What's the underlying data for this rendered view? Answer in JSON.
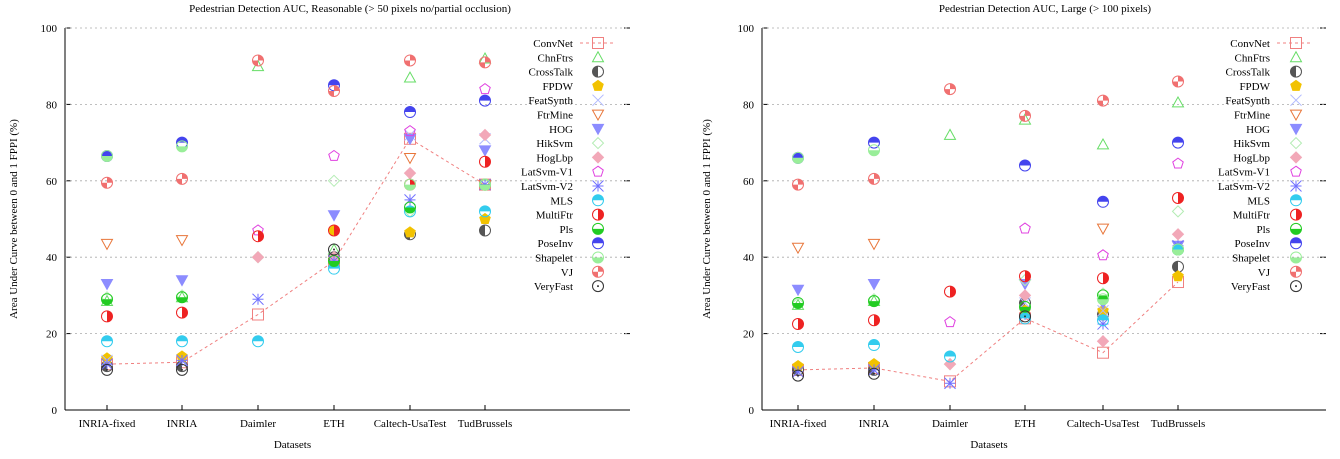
{
  "colors": {
    "ConvNet": "#f08080",
    "ChnFtrs": "#66dd66",
    "CrossTalk": "#555555",
    "FPDW": "#f2c200",
    "FeatSynth": "#b0b8ff",
    "FtrMine": "#e8763a",
    "HOG": "#8c8cff",
    "HikSvm": "#b4ecb4",
    "HogLbp": "#f2a8b8",
    "LatSvm-V1": "#e040e0",
    "LatSvm-V2": "#7070ff",
    "MLS": "#33ccee",
    "MultiFtr": "#ee2222",
    "Pls": "#22cc22",
    "PoseInv": "#4444ee",
    "Shapelet": "#99ee99",
    "VJ": "#f07070",
    "VeryFast": "#333333"
  },
  "markers": {
    "ConvNet": "square-open",
    "ChnFtrs": "triangle-up-open",
    "CrossTalk": "circle-half-left-dark",
    "FPDW": "pentagon-filled",
    "FeatSynth": "x-cross",
    "FtrMine": "triangle-down-open",
    "HOG": "triangle-down-filled",
    "HikSvm": "diamond-open",
    "HogLbp": "diamond-filled",
    "LatSvm-V1": "pentagon-open",
    "LatSvm-V2": "asterisk",
    "MLS": "circle-half-top",
    "MultiFtr": "circle-half-right",
    "Pls": "circle-half-bottom",
    "PoseInv": "circle-half-top-filled",
    "Shapelet": "circle-half-bottom-light",
    "VJ": "circle-quarters",
    "VeryFast": "circle-dot"
  },
  "chart_data": [
    {
      "type": "scatter",
      "title": "Pedestrian Detection AUC, Reasonable (> 50 pixels  no/partial occlusion)",
      "xlabel": "Datasets",
      "ylabel": "Area Under Curve between 0 and 1 FPPI (%)",
      "categories": [
        "INRIA-fixed",
        "INRIA",
        "Daimler",
        "ETH",
        "Caltech-UsaTest",
        "TudBrussels"
      ],
      "ylim": [
        0,
        100
      ],
      "yticks": [
        "0",
        "20",
        "40",
        "60",
        "80",
        "100"
      ],
      "line_series": "ConvNet",
      "legend": [
        "ConvNet",
        "ChnFtrs",
        "CrossTalk",
        "FPDW",
        "FeatSynth",
        "FtrMine",
        "HOG",
        "HikSvm",
        "HogLbp",
        "LatSvm-V1",
        "LatSvm-V2",
        "MLS",
        "MultiFtr",
        "Pls",
        "PoseInv",
        "Shapelet",
        "VJ",
        "VeryFast"
      ],
      "series": [
        {
          "name": "ConvNet",
          "values": [
            12,
            12.5,
            25,
            39,
            71,
            59
          ]
        },
        {
          "name": "ChnFtrs",
          "values": [
            28.5,
            29.5,
            90,
            42,
            87,
            92
          ]
        },
        {
          "name": "CrossTalk",
          "values": [
            11.5,
            11.5,
            null,
            40,
            46,
            47
          ]
        },
        {
          "name": "FPDW",
          "values": [
            13.5,
            14,
            null,
            47,
            46.5,
            50
          ]
        },
        {
          "name": "FeatSynth",
          "values": [
            13,
            13,
            null,
            40,
            72,
            71
          ]
        },
        {
          "name": "FtrMine",
          "values": [
            43.5,
            44.5,
            null,
            null,
            66,
            59
          ]
        },
        {
          "name": "HOG",
          "values": [
            33,
            34,
            null,
            51,
            71,
            68
          ]
        },
        {
          "name": "HikSvm",
          "values": [
            29.5,
            30,
            40,
            60,
            52,
            59
          ]
        },
        {
          "name": "HogLbp",
          "values": [
            null,
            null,
            40,
            40,
            62,
            72
          ]
        },
        {
          "name": "LatSvm-V1",
          "values": [
            null,
            null,
            47,
            66.5,
            73,
            84
          ]
        },
        {
          "name": "LatSvm-V2",
          "values": [
            12,
            13,
            29,
            39,
            55,
            59
          ]
        },
        {
          "name": "MLS",
          "values": [
            18,
            18,
            18,
            37,
            52,
            52
          ]
        },
        {
          "name": "MultiFtr",
          "values": [
            24.5,
            25.5,
            45.5,
            47,
            59,
            65
          ]
        },
        {
          "name": "Pls",
          "values": [
            29,
            29.5,
            null,
            39,
            53,
            59
          ]
        },
        {
          "name": "PoseInv",
          "values": [
            66.5,
            70,
            null,
            85,
            78,
            81
          ]
        },
        {
          "name": "Shapelet",
          "values": [
            66.5,
            69,
            null,
            null,
            59,
            59
          ]
        },
        {
          "name": "VJ",
          "values": [
            59.5,
            60.5,
            91.5,
            83.5,
            91.5,
            91
          ]
        },
        {
          "name": "VeryFast",
          "values": [
            10.5,
            10.5,
            null,
            42,
            null,
            null
          ]
        }
      ]
    },
    {
      "type": "scatter",
      "title": "Pedestrian Detection AUC, Large (> 100 pixels)",
      "xlabel": "Datasets",
      "ylabel": "Area Under Curve between 0 and 1 FPPI (%)",
      "categories": [
        "INRIA-fixed",
        "INRIA",
        "Daimler",
        "ETH",
        "Caltech-UsaTest",
        "TudBrussels"
      ],
      "ylim": [
        0,
        100
      ],
      "yticks": [
        "0",
        "20",
        "40",
        "60",
        "80",
        "100"
      ],
      "line_series": "ConvNet",
      "legend": [
        "ConvNet",
        "ChnFtrs",
        "CrossTalk",
        "FPDW",
        "FeatSynth",
        "FtrMine",
        "HOG",
        "HikSvm",
        "HogLbp",
        "LatSvm-V1",
        "LatSvm-V2",
        "MLS",
        "MultiFtr",
        "Pls",
        "PoseInv",
        "Shapelet",
        "VJ",
        "VeryFast"
      ],
      "series": [
        {
          "name": "ConvNet",
          "values": [
            10.5,
            11,
            7.5,
            24,
            15,
            33.5
          ]
        },
        {
          "name": "ChnFtrs",
          "values": [
            27.5,
            28.5,
            72,
            76,
            69.5,
            80.5
          ]
        },
        {
          "name": "CrossTalk",
          "values": [
            10.5,
            10.5,
            null,
            28,
            25,
            37.5
          ]
        },
        {
          "name": "FPDW",
          "values": [
            11.5,
            12,
            null,
            26,
            26,
            35
          ]
        },
        {
          "name": "FeatSynth",
          "values": [
            10,
            10.5,
            7,
            28,
            26,
            43
          ]
        },
        {
          "name": "FtrMine",
          "values": [
            42.5,
            43.5,
            null,
            null,
            47.5,
            43
          ]
        },
        {
          "name": "HOG",
          "values": [
            31.5,
            33,
            null,
            33,
            28,
            43
          ]
        },
        {
          "name": "HikSvm",
          "values": [
            28,
            29,
            12,
            34,
            30.5,
            52
          ]
        },
        {
          "name": "HogLbp",
          "values": [
            null,
            null,
            12,
            30,
            18,
            46
          ]
        },
        {
          "name": "LatSvm-V1",
          "values": [
            null,
            null,
            23,
            47.5,
            40.5,
            64.5
          ]
        },
        {
          "name": "LatSvm-V2",
          "values": [
            10,
            10.5,
            7,
            25,
            22.5,
            43
          ]
        },
        {
          "name": "MLS",
          "values": [
            16.5,
            17,
            14,
            24,
            23.5,
            42
          ]
        },
        {
          "name": "MultiFtr",
          "values": [
            22.5,
            23.5,
            31,
            35,
            34.5,
            55.5
          ]
        },
        {
          "name": "Pls",
          "values": [
            28,
            28.5,
            null,
            27,
            30,
            42
          ]
        },
        {
          "name": "PoseInv",
          "values": [
            66,
            70,
            null,
            64,
            54.5,
            70
          ]
        },
        {
          "name": "Shapelet",
          "values": [
            66,
            68,
            null,
            null,
            29,
            42
          ]
        },
        {
          "name": "VJ",
          "values": [
            59,
            60.5,
            84,
            77,
            81,
            86
          ]
        },
        {
          "name": "VeryFast",
          "values": [
            9,
            9.5,
            null,
            24.5,
            null,
            null
          ]
        }
      ]
    }
  ]
}
